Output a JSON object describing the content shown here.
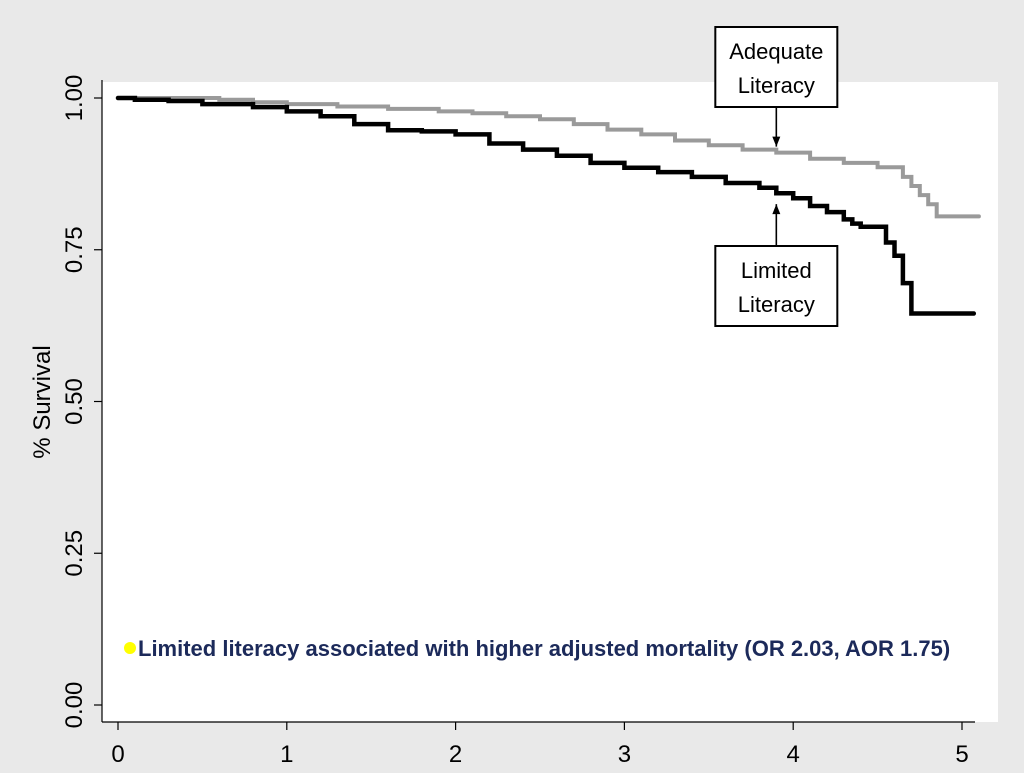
{
  "chart_data": {
    "type": "line",
    "title": "",
    "xlabel": "",
    "ylabel": "% Survival",
    "xlim": [
      0,
      5.1
    ],
    "ylim": [
      0,
      1.0
    ],
    "x_ticks": [
      "0",
      "1",
      "2",
      "3",
      "4",
      "5"
    ],
    "y_ticks": [
      "0.00",
      "0.25",
      "0.50",
      "0.75",
      "1.00"
    ],
    "grid": false,
    "series": [
      {
        "name": "Adequate Literacy",
        "color": "#9a9a9a",
        "x": [
          0,
          0.3,
          0.6,
          0.8,
          1.0,
          1.3,
          1.6,
          1.9,
          2.1,
          2.3,
          2.5,
          2.7,
          2.9,
          3.1,
          3.3,
          3.5,
          3.7,
          3.9,
          4.1,
          4.3,
          4.5,
          4.65,
          4.7,
          4.75,
          4.8,
          4.85,
          5.1
        ],
        "values": [
          1.0,
          1.0,
          0.997,
          0.993,
          0.99,
          0.986,
          0.982,
          0.978,
          0.975,
          0.97,
          0.965,
          0.957,
          0.948,
          0.94,
          0.93,
          0.922,
          0.915,
          0.91,
          0.9,
          0.893,
          0.886,
          0.87,
          0.855,
          0.84,
          0.825,
          0.805,
          0.805
        ]
      },
      {
        "name": "Limited Literacy",
        "color": "#000000",
        "x": [
          0,
          0.1,
          0.3,
          0.5,
          0.8,
          1.0,
          1.2,
          1.4,
          1.6,
          1.8,
          2.0,
          2.2,
          2.4,
          2.6,
          2.8,
          3.0,
          3.2,
          3.4,
          3.6,
          3.8,
          3.9,
          4.0,
          4.1,
          4.2,
          4.3,
          4.35,
          4.4,
          4.45,
          4.5,
          4.55,
          4.6,
          4.65,
          4.7,
          5.07
        ],
        "values": [
          1.0,
          0.997,
          0.995,
          0.99,
          0.985,
          0.978,
          0.97,
          0.957,
          0.947,
          0.945,
          0.94,
          0.925,
          0.915,
          0.905,
          0.893,
          0.885,
          0.878,
          0.87,
          0.86,
          0.852,
          0.843,
          0.835,
          0.822,
          0.812,
          0.8,
          0.793,
          0.788,
          0.788,
          0.788,
          0.762,
          0.74,
          0.695,
          0.645,
          0.645
        ]
      }
    ],
    "annotations": [
      {
        "lines": [
          "Adequate",
          "Literacy"
        ],
        "series": "Adequate Literacy",
        "x": 3.9,
        "y": 0.91,
        "side": "above"
      },
      {
        "lines": [
          "Limited",
          "Literacy"
        ],
        "series": "Limited Literacy",
        "x": 3.9,
        "y": 0.835,
        "side": "below"
      }
    ]
  },
  "note": {
    "bullet_color": "#ffff00",
    "text": "Limited literacy associated with higher adjusted mortality  (OR 2.03, AOR 1.75)"
  }
}
